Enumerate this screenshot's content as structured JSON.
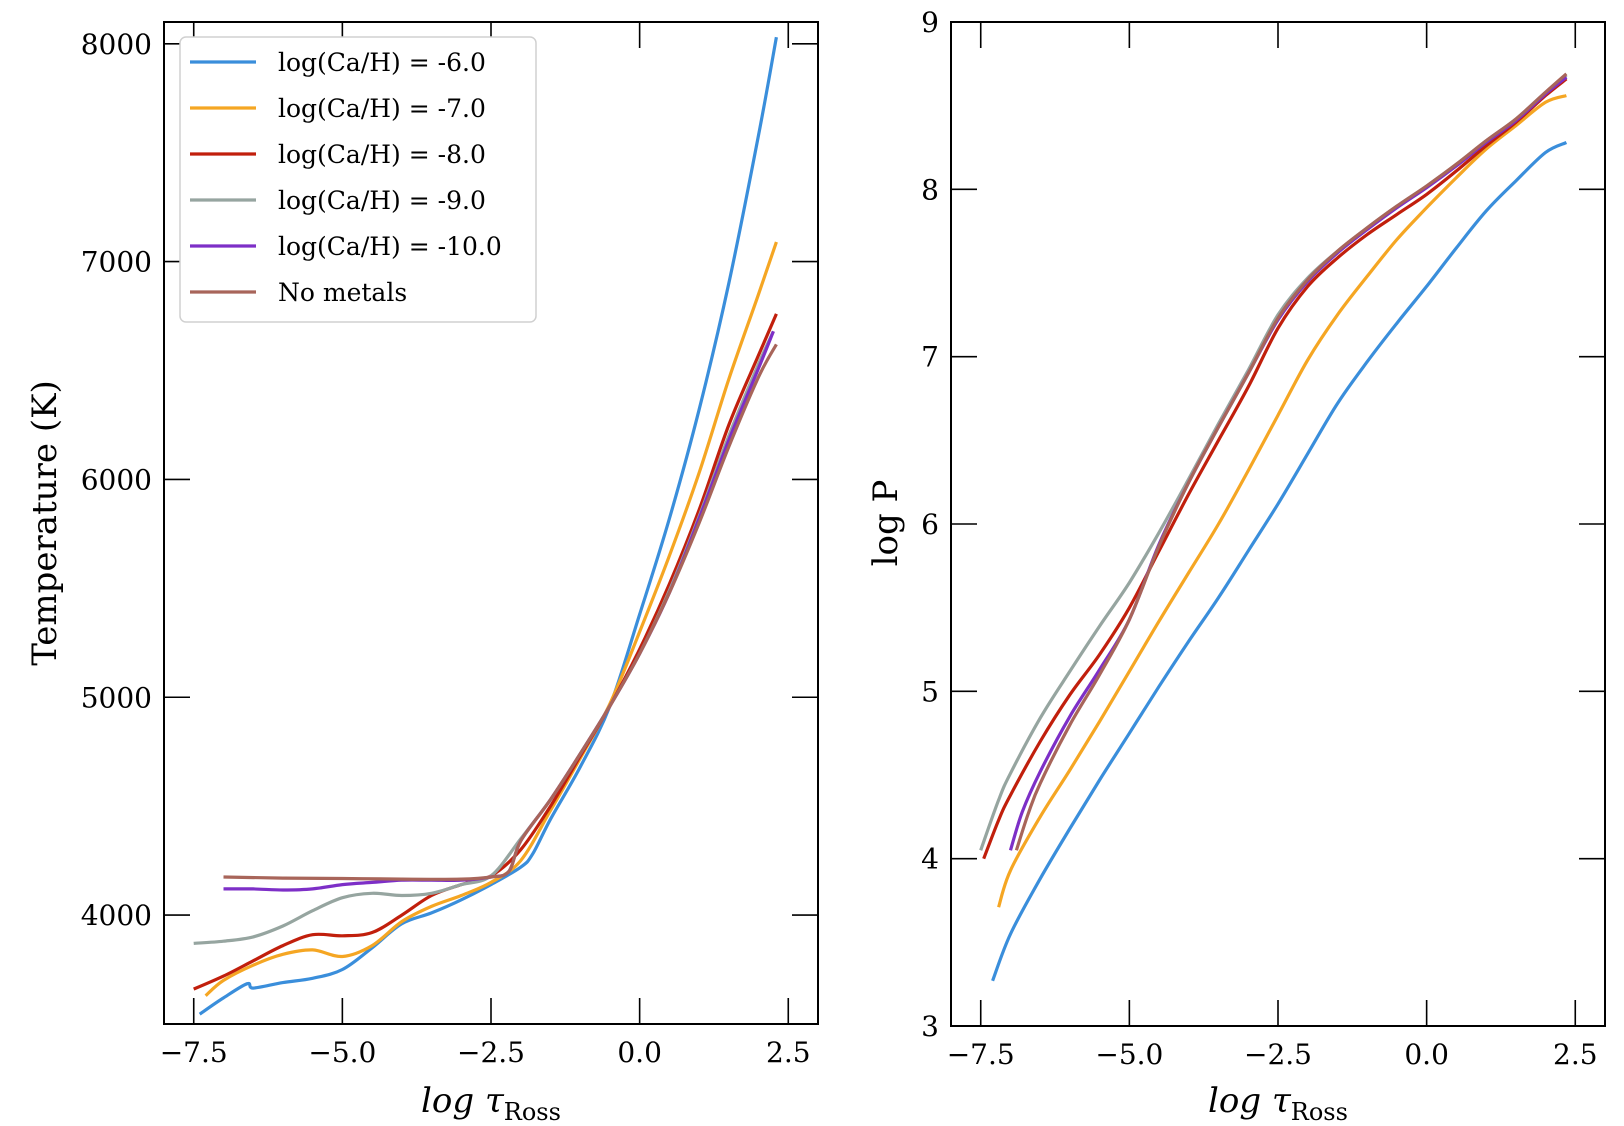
{
  "chart_data": [
    {
      "type": "line",
      "xlabel": "log τ",
      "xlabel_sub": "Ross",
      "ylabel": "Temperature (K)",
      "xlim": [
        -8.0,
        3.0
      ],
      "ylim": [
        3500,
        8100
      ],
      "xticks": [
        -7.5,
        -5.0,
        -2.5,
        0.0,
        2.5
      ],
      "xtick_labels": [
        "−7.5",
        "−5.0",
        "−2.5",
        "0.0",
        "2.5"
      ],
      "yticks": [
        4000,
        5000,
        6000,
        7000,
        8000
      ],
      "ytick_labels": [
        "4000",
        "5000",
        "6000",
        "7000",
        "8000"
      ],
      "legend_position": "top-left",
      "series": [
        {
          "name": "log(Ca/H) = -6.0",
          "color": "#3a8edb",
          "x": [
            -7.4,
            -7.0,
            -6.6,
            -6.5,
            -6.0,
            -5.5,
            -5.0,
            -4.5,
            -4.0,
            -3.5,
            -3.0,
            -2.5,
            -2.0,
            -1.8,
            -1.5,
            -1.0,
            -0.5,
            0.0,
            0.5,
            1.0,
            1.5,
            2.0,
            2.3
          ],
          "y": [
            3545,
            3620,
            3685,
            3665,
            3690,
            3710,
            3750,
            3850,
            3960,
            4010,
            4070,
            4140,
            4220,
            4280,
            4440,
            4680,
            4960,
            5380,
            5820,
            6320,
            6900,
            7580,
            8030
          ]
        },
        {
          "name": "log(Ca/H) = -7.0",
          "color": "#f5a623",
          "x": [
            -7.3,
            -7.0,
            -6.5,
            -6.0,
            -5.5,
            -5.0,
            -4.5,
            -4.0,
            -3.5,
            -3.0,
            -2.5,
            -2.0,
            -1.5,
            -1.0,
            -0.5,
            0.0,
            0.5,
            1.0,
            1.5,
            2.0,
            2.3
          ],
          "y": [
            3630,
            3700,
            3770,
            3820,
            3840,
            3810,
            3860,
            3970,
            4040,
            4090,
            4150,
            4250,
            4480,
            4720,
            4970,
            5300,
            5650,
            6030,
            6460,
            6850,
            7090
          ]
        },
        {
          "name": "log(Ca/H) = -8.0",
          "color": "#c11f0c",
          "x": [
            -7.5,
            -7.0,
            -6.5,
            -6.0,
            -5.5,
            -5.0,
            -4.5,
            -4.0,
            -3.5,
            -3.0,
            -2.5,
            -2.0,
            -1.5,
            -1.0,
            -0.5,
            0.0,
            0.5,
            1.0,
            1.5,
            2.0,
            2.3
          ],
          "y": [
            3660,
            3720,
            3790,
            3860,
            3910,
            3905,
            3920,
            4000,
            4090,
            4140,
            4180,
            4300,
            4500,
            4730,
            4960,
            5220,
            5520,
            5860,
            6250,
            6570,
            6760
          ]
        },
        {
          "name": "log(Ca/H) = -9.0",
          "color": "#96a5a0",
          "x": [
            -7.5,
            -7.0,
            -6.5,
            -6.0,
            -5.5,
            -5.0,
            -4.5,
            -4.0,
            -3.5,
            -3.0,
            -2.5,
            -2.0,
            -1.5,
            -1.0,
            -0.5,
            0.0,
            0.5,
            1.0,
            1.5,
            2.0,
            2.25
          ],
          "y": [
            3870,
            3880,
            3900,
            3950,
            4020,
            4080,
            4100,
            4090,
            4100,
            4140,
            4180,
            4350,
            4530,
            4740,
            4960,
            5200,
            5490,
            5830,
            6200,
            6530,
            6680
          ]
        },
        {
          "name": "log(Ca/H) = -10.0",
          "color": "#7d2fc7",
          "x": [
            -7.0,
            -6.5,
            -6.0,
            -5.5,
            -5.0,
            -4.5,
            -4.0,
            -3.5,
            -3.0,
            -2.5,
            -2.2,
            -2.0,
            -1.5,
            -1.0,
            -0.5,
            0.0,
            0.5,
            1.0,
            1.5,
            2.0,
            2.25
          ],
          "y": [
            4120,
            4120,
            4115,
            4120,
            4140,
            4150,
            4160,
            4160,
            4160,
            4175,
            4200,
            4340,
            4530,
            4740,
            4960,
            5200,
            5480,
            5820,
            6180,
            6510,
            6680
          ]
        },
        {
          "name": "No metals",
          "color": "#a8655a",
          "x": [
            -7.0,
            -6.0,
            -5.0,
            -4.0,
            -3.0,
            -2.5,
            -2.2,
            -2.0,
            -1.5,
            -1.0,
            -0.5,
            0.0,
            0.5,
            1.0,
            1.5,
            2.0,
            2.3
          ],
          "y": [
            4175,
            4170,
            4168,
            4165,
            4165,
            4175,
            4200,
            4340,
            4530,
            4740,
            4960,
            5200,
            5480,
            5800,
            6150,
            6470,
            6620
          ]
        }
      ]
    },
    {
      "type": "line",
      "xlabel": "log τ",
      "xlabel_sub": "Ross",
      "ylabel": "log P",
      "xlim": [
        -8.0,
        3.0
      ],
      "ylim": [
        3.0,
        9.0
      ],
      "xticks": [
        -7.5,
        -5.0,
        -2.5,
        0.0,
        2.5
      ],
      "xtick_labels": [
        "−7.5",
        "−5.0",
        "−2.5",
        "0.0",
        "2.5"
      ],
      "yticks": [
        3,
        4,
        5,
        6,
        7,
        8,
        9
      ],
      "ytick_labels": [
        "3",
        "4",
        "5",
        "6",
        "7",
        "8",
        "9"
      ],
      "series": [
        {
          "name": "log(Ca/H) = -6.0",
          "color": "#3a8edb",
          "x": [
            -7.3,
            -7.0,
            -6.5,
            -6.0,
            -5.5,
            -5.0,
            -4.5,
            -4.0,
            -3.5,
            -3.0,
            -2.5,
            -2.0,
            -1.5,
            -1.0,
            -0.5,
            0.0,
            0.5,
            1.0,
            1.5,
            2.0,
            2.35
          ],
          "y": [
            3.27,
            3.55,
            3.88,
            4.18,
            4.47,
            4.75,
            5.03,
            5.3,
            5.56,
            5.84,
            6.12,
            6.42,
            6.72,
            6.97,
            7.2,
            7.42,
            7.65,
            7.87,
            8.05,
            8.22,
            8.28
          ]
        },
        {
          "name": "log(Ca/H) = -7.0",
          "color": "#f5a623",
          "x": [
            -7.2,
            -7.0,
            -6.5,
            -6.0,
            -5.5,
            -5.0,
            -4.5,
            -4.0,
            -3.5,
            -3.0,
            -2.5,
            -2.0,
            -1.5,
            -1.0,
            -0.5,
            0.0,
            0.5,
            1.0,
            1.5,
            2.0,
            2.35
          ],
          "y": [
            3.71,
            3.93,
            4.25,
            4.53,
            4.82,
            5.12,
            5.42,
            5.71,
            6.0,
            6.32,
            6.65,
            6.98,
            7.25,
            7.48,
            7.7,
            7.89,
            8.07,
            8.24,
            8.38,
            8.52,
            8.56
          ]
        },
        {
          "name": "log(Ca/H) = -8.0",
          "color": "#c11f0c",
          "x": [
            -7.45,
            -7.2,
            -7.0,
            -6.5,
            -6.0,
            -5.5,
            -5.0,
            -4.5,
            -4.0,
            -3.5,
            -3.0,
            -2.5,
            -2.0,
            -1.5,
            -1.0,
            -0.5,
            0.0,
            0.5,
            1.0,
            1.5,
            2.0,
            2.35
          ],
          "y": [
            4.0,
            4.23,
            4.38,
            4.7,
            4.98,
            5.22,
            5.5,
            5.84,
            6.18,
            6.5,
            6.82,
            7.17,
            7.42,
            7.59,
            7.73,
            7.85,
            7.97,
            8.11,
            8.26,
            8.4,
            8.56,
            8.66
          ]
        },
        {
          "name": "log(Ca/H) = -9.0",
          "color": "#96a5a0",
          "x": [
            -7.5,
            -7.2,
            -7.0,
            -6.5,
            -6.0,
            -5.5,
            -5.0,
            -4.5,
            -4.0,
            -3.5,
            -3.0,
            -2.5,
            -2.0,
            -1.5,
            -1.0,
            -0.5,
            0.0,
            0.5,
            1.0,
            1.5,
            2.0,
            2.35
          ],
          "y": [
            4.05,
            4.35,
            4.51,
            4.84,
            5.12,
            5.39,
            5.65,
            5.95,
            6.27,
            6.6,
            6.92,
            7.25,
            7.47,
            7.63,
            7.77,
            7.9,
            8.02,
            8.15,
            8.29,
            8.42,
            8.58,
            8.68
          ]
        },
        {
          "name": "log(Ca/H) = -10.0",
          "color": "#7d2fc7",
          "x": [
            -7.0,
            -6.8,
            -6.5,
            -6.0,
            -5.5,
            -5.0,
            -4.5,
            -4.0,
            -3.5,
            -3.0,
            -2.5,
            -2.0,
            -1.5,
            -1.0,
            -0.5,
            0.0,
            0.5,
            1.0,
            1.5,
            2.0,
            2.35
          ],
          "y": [
            4.05,
            4.28,
            4.52,
            4.85,
            5.13,
            5.43,
            5.88,
            6.25,
            6.58,
            6.9,
            7.22,
            7.45,
            7.62,
            7.76,
            7.89,
            8.01,
            8.14,
            8.28,
            8.41,
            8.57,
            8.67
          ]
        },
        {
          "name": "No metals",
          "color": "#a8655a",
          "x": [
            -6.9,
            -6.7,
            -6.5,
            -6.0,
            -5.5,
            -5.0,
            -4.5,
            -4.0,
            -3.5,
            -3.0,
            -2.5,
            -2.0,
            -1.5,
            -1.0,
            -0.5,
            0.0,
            0.5,
            1.0,
            1.5,
            2.0,
            2.35
          ],
          "y": [
            4.05,
            4.27,
            4.45,
            4.8,
            5.1,
            5.43,
            5.87,
            6.25,
            6.58,
            6.9,
            7.23,
            7.46,
            7.63,
            7.77,
            7.9,
            8.02,
            8.15,
            8.29,
            8.42,
            8.58,
            8.69
          ]
        }
      ]
    }
  ]
}
